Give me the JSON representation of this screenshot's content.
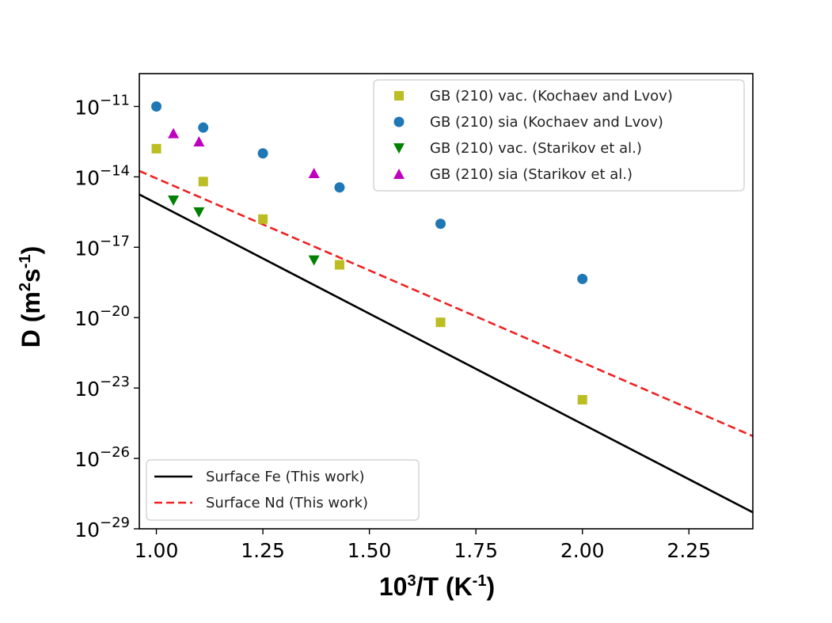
{
  "chart_data": {
    "type": "scatter",
    "xlabel": {
      "base": "10",
      "sup": "3",
      "rest": "/T (K",
      "sup2": "-1",
      "close": ")"
    },
    "ylabel": {
      "pre": "D (m",
      "sup": "2",
      "mid": "s",
      "sup2": "-1",
      "close": ")"
    },
    "xlim": [
      0.96,
      2.4
    ],
    "ylim_exp": [
      -29,
      -9.6
    ],
    "y_scale": "log",
    "x_ticks": [
      {
        "value": 1.0,
        "label": "1.00"
      },
      {
        "value": 1.25,
        "label": "1.25"
      },
      {
        "value": 1.5,
        "label": "1.50"
      },
      {
        "value": 1.75,
        "label": "1.75"
      },
      {
        "value": 2.0,
        "label": "2.00"
      },
      {
        "value": 2.25,
        "label": "2.25"
      }
    ],
    "y_ticks": [
      {
        "exp": -11,
        "base": "10",
        "sup": "−11"
      },
      {
        "exp": -14,
        "base": "10",
        "sup": "−14"
      },
      {
        "exp": -17,
        "base": "10",
        "sup": "−17"
      },
      {
        "exp": -20,
        "base": "10",
        "sup": "−20"
      },
      {
        "exp": -23,
        "base": "10",
        "sup": "−23"
      },
      {
        "exp": -26,
        "base": "10",
        "sup": "−26"
      },
      {
        "exp": -29,
        "base": "10",
        "sup": "−29"
      }
    ],
    "scatter_series": [
      {
        "name": "GB (210) vac. (Kochaev and Lvov)",
        "marker": "square",
        "color": "#bcbd22",
        "points": [
          [
            1.0,
            -12.8
          ],
          [
            1.11,
            -14.2
          ],
          [
            1.25,
            -15.8
          ],
          [
            1.43,
            -17.75
          ],
          [
            1.667,
            -20.2
          ],
          [
            2.0,
            -23.5
          ]
        ]
      },
      {
        "name": "GB (210) sia (Kochaev and Lvov)",
        "marker": "circle",
        "color": "#1f77b4",
        "points": [
          [
            1.0,
            -11.0
          ],
          [
            1.11,
            -11.9
          ],
          [
            1.25,
            -13.0
          ],
          [
            1.43,
            -14.45
          ],
          [
            1.667,
            -16.0
          ],
          [
            2.0,
            -18.35
          ]
        ]
      },
      {
        "name": "GB (210) vac. (Starikov et al.)",
        "marker": "triangle-down",
        "color": "#008000",
        "points": [
          [
            1.04,
            -15.0
          ],
          [
            1.1,
            -15.5
          ],
          [
            1.37,
            -17.55
          ]
        ]
      },
      {
        "name": "GB (210) sia (Starikov et al.)",
        "marker": "triangle-up",
        "color": "#bf00bf",
        "points": [
          [
            1.04,
            -12.15
          ],
          [
            1.1,
            -12.5
          ],
          [
            1.37,
            -13.85
          ]
        ]
      }
    ],
    "line_series": [
      {
        "name": "Surface Fe (This work)",
        "style": "solid",
        "color": "#000000",
        "points": [
          [
            0.96,
            -14.75
          ],
          [
            2.4,
            -28.3
          ]
        ]
      },
      {
        "name": "Surface Nd (This work)",
        "style": "dashed",
        "color": "#ee2222",
        "points": [
          [
            0.96,
            -13.75
          ],
          [
            2.4,
            -25.05
          ]
        ]
      }
    ],
    "legend_markers_position": "top-right",
    "legend_lines_position": "bottom-left",
    "grid": false
  }
}
